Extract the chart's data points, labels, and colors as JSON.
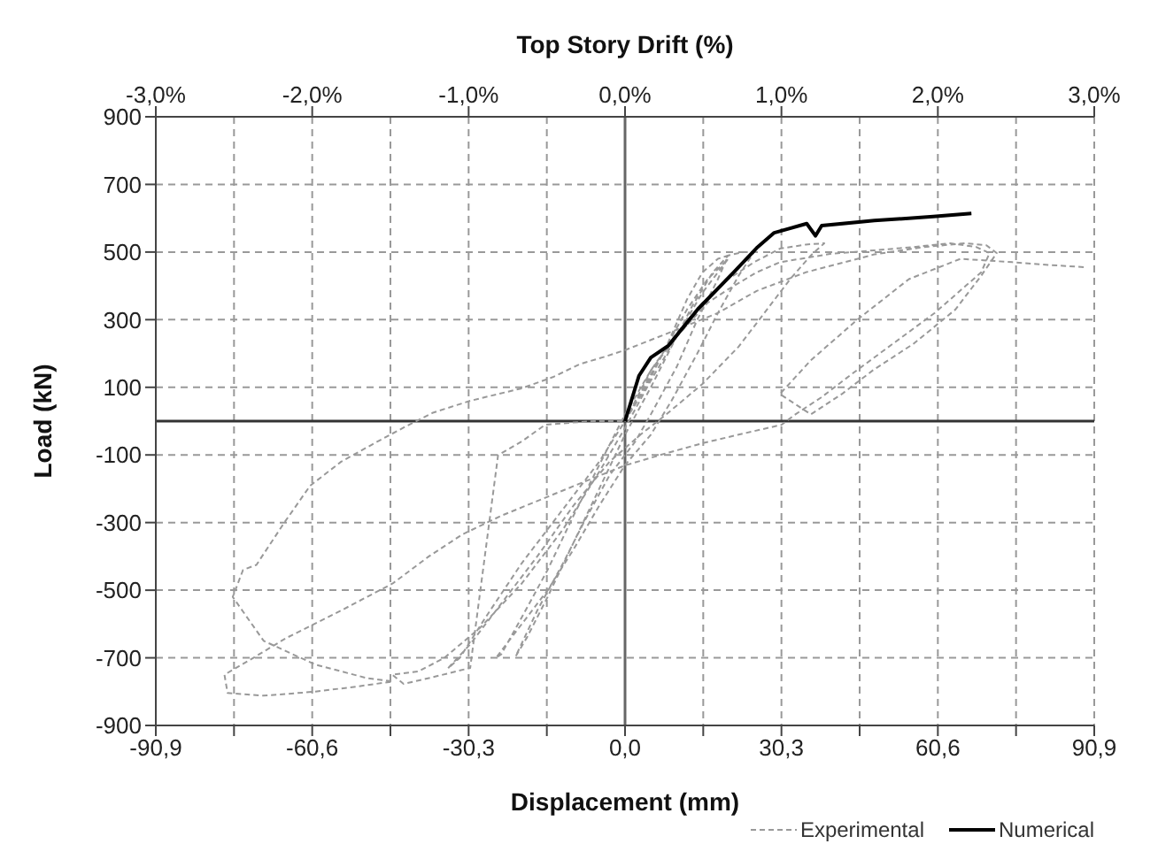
{
  "chart_data": {
    "type": "line",
    "xlabel": "Displacement (mm)",
    "ylabel": "Load (kN)",
    "x2label": "Top Story Drift (%)",
    "xlim": [
      -90.9,
      90.9
    ],
    "xticks": [
      {
        "value": -90.9,
        "label": "-90,9"
      },
      {
        "value": -75.75,
        "label": null
      },
      {
        "value": -60.6,
        "label": "-60,6"
      },
      {
        "value": -45.45,
        "label": null
      },
      {
        "value": -30.3,
        "label": "-30,3"
      },
      {
        "value": -15.15,
        "label": null
      },
      {
        "value": 0,
        "label": "0,0"
      },
      {
        "value": 15.15,
        "label": null
      },
      {
        "value": 30.3,
        "label": "30,3"
      },
      {
        "value": 45.45,
        "label": null
      },
      {
        "value": 60.6,
        "label": "60,6"
      },
      {
        "value": 75.75,
        "label": null
      },
      {
        "value": 90.9,
        "label": "90,9"
      }
    ],
    "x2lim": [
      -3,
      3
    ],
    "x2ticks": [
      {
        "value": -3,
        "label": "-3,0%"
      },
      {
        "value": -2,
        "label": "-2,0%"
      },
      {
        "value": -1,
        "label": "-1,0%"
      },
      {
        "value": 0,
        "label": "0,0%"
      },
      {
        "value": 1,
        "label": "1,0%"
      },
      {
        "value": 2,
        "label": "2,0%"
      },
      {
        "value": 3,
        "label": "3,0%"
      }
    ],
    "ylim": [
      -900,
      900
    ],
    "yticks": [
      -900,
      -700,
      -500,
      -300,
      -100,
      100,
      300,
      500,
      700,
      900
    ],
    "grid": true,
    "legend": "bottom right",
    "ref_lines": [
      {
        "axis": "x",
        "value": 0,
        "color": "#666666",
        "line_style": "solid"
      },
      {
        "axis": "y",
        "value": 0,
        "color": "#333333",
        "line_style": "solid"
      }
    ],
    "series": [
      {
        "name": "Experimental",
        "color": "#999999",
        "line_style": "dashed",
        "x": [
          0,
          4,
          8,
          12,
          15,
          18,
          20,
          18,
          14,
          10,
          5,
          2,
          -3,
          -8,
          -12,
          -17,
          -21.2,
          -19,
          -15,
          -10,
          -5,
          0,
          5,
          9,
          13,
          17,
          20,
          23,
          25,
          22,
          18,
          14,
          9,
          5,
          0,
          -5,
          -10,
          -15,
          -20,
          -25,
          -24,
          -20,
          -15,
          -10,
          -5,
          0,
          5,
          10,
          15,
          20,
          25,
          30,
          35,
          38.6,
          36,
          32,
          27,
          22,
          15,
          8,
          3,
          -3,
          -10,
          -17,
          -24,
          -30,
          -34.3,
          -32,
          -27,
          -20,
          -12,
          -5,
          0,
          4,
          8,
          12,
          16,
          20,
          15,
          10,
          5,
          0,
          -5,
          -12,
          -20,
          -28,
          -35,
          -40,
          -45.1,
          -42.9,
          -38,
          -34,
          -30,
          -24.6,
          -20,
          -15.5,
          -10,
          -6,
          -2,
          0,
          2,
          5,
          10,
          16,
          20,
          25.5,
          30,
          40,
          48.3,
          56,
          63,
          68,
          70.6,
          69,
          66,
          60,
          52,
          44,
          38,
          33,
          30.3,
          22,
          15.1,
          8,
          0,
          -8,
          -16,
          -24,
          -31.5,
          -38,
          -45,
          -55,
          -65.7,
          -72,
          -77.6,
          -77,
          -70,
          -60,
          -52,
          -45,
          -50,
          -60,
          -70,
          -76,
          -74,
          -71.4,
          -66,
          -61,
          -55,
          -48.5,
          -43,
          -37.2,
          -30,
          -20,
          -14,
          -8.7,
          -4,
          0,
          5,
          10,
          18,
          25.5,
          35,
          48.3,
          58,
          66,
          70,
          72,
          69,
          64,
          56,
          48,
          42,
          36,
          30,
          36,
          45,
          55,
          65,
          75,
          82,
          89.4
        ],
        "values": [
          0,
          100,
          220,
          360,
          440,
          480,
          490,
          420,
          300,
          160,
          20,
          -60,
          -160,
          -300,
          -420,
          -560,
          -696,
          -640,
          -520,
          -360,
          -200,
          -40,
          100,
          220,
          340,
          440,
          490,
          500,
          500,
          430,
          320,
          200,
          60,
          -40,
          -130,
          -250,
          -380,
          -500,
          -600,
          -700,
          -690,
          -580,
          -440,
          -280,
          -130,
          20,
          150,
          260,
          350,
          420,
          470,
          510,
          522,
          526,
          490,
          420,
          320,
          220,
          110,
          20,
          -40,
          -120,
          -250,
          -400,
          -540,
          -660,
          -731,
          -700,
          -580,
          -420,
          -260,
          -120,
          0,
          110,
          220,
          330,
          420,
          480,
          380,
          250,
          120,
          -20,
          -150,
          -320,
          -480,
          -610,
          -700,
          -740,
          -750,
          -777,
          -760,
          -745,
          -730,
          -101,
          -60,
          -11,
          -4,
          0,
          0,
          0,
          60,
          150,
          250,
          350,
          390,
          440,
          470,
          495,
          505,
          515,
          526,
          515,
          497,
          440,
          400,
          320,
          230,
          140,
          70,
          20,
          -11,
          -40,
          -65,
          -95,
          -131,
          -180,
          -230,
          -280,
          -335,
          -400,
          -480,
          -560,
          -642,
          -700,
          -750,
          -804,
          -812,
          -800,
          -785,
          -770,
          -760,
          -720,
          -650,
          -520,
          -440,
          -425,
          -300,
          -191,
          -120,
          -65,
          -20,
          25,
          60,
          97,
          130,
          169,
          190,
          210,
          240,
          270,
          320,
          385,
          440,
          493,
          515,
          526,
          520,
          497,
          430,
          330,
          230,
          150,
          80,
          20,
          80,
          180,
          300,
          420,
          480,
          470,
          462,
          455
        ]
      },
      {
        "name": "Numerical",
        "color": "#000000",
        "line_style": "solid",
        "x": [
          0,
          2.7,
          5,
          8.4,
          14.1,
          21,
          25.5,
          28.9,
          35.2,
          36.9,
          38.1,
          48.3,
          59.7,
          67.1
        ],
        "values": [
          0,
          134,
          188,
          223,
          331,
          439,
          512,
          557,
          584,
          548,
          578,
          593,
          605,
          614
        ]
      }
    ]
  }
}
